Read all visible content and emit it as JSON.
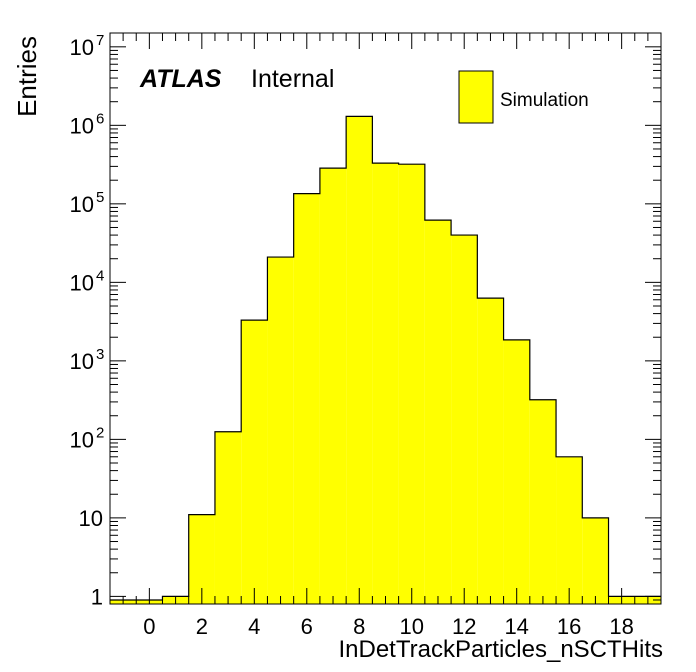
{
  "chart_data": {
    "type": "bar",
    "xlabel": "InDetTrackParticles_nSCTHits",
    "ylabel": "Entries",
    "log_y": true,
    "xlim": [
      -1.5,
      19.5
    ],
    "ylim": [
      0.8,
      15000000
    ],
    "x_ticks": [
      0,
      2,
      4,
      6,
      8,
      10,
      12,
      14,
      16,
      18
    ],
    "y_ticks": [
      {
        "value": 1,
        "label": "1"
      },
      {
        "value": 10,
        "label": "10"
      },
      {
        "value": 100,
        "label": "10",
        "exp": "2"
      },
      {
        "value": 1000,
        "label": "10",
        "exp": "3"
      },
      {
        "value": 10000,
        "label": "10",
        "exp": "4"
      },
      {
        "value": 100000,
        "label": "10",
        "exp": "5"
      },
      {
        "value": 1000000,
        "label": "10",
        "exp": "6"
      },
      {
        "value": 10000000,
        "label": "10",
        "exp": "7"
      }
    ],
    "bin_edges": [
      -1.5,
      -0.5,
      0.5,
      1.5,
      2.5,
      3.5,
      4.5,
      5.5,
      6.5,
      7.5,
      8.5,
      9.5,
      10.5,
      11.5,
      12.5,
      13.5,
      14.5,
      15.5,
      16.5,
      17.5,
      18.5,
      19.5
    ],
    "series": [
      {
        "name": "Simulation",
        "color": "#ffff00",
        "values": [
          0.9,
          0.9,
          1,
          11,
          125,
          3300,
          21000,
          135000,
          285000,
          1300000,
          330000,
          320000,
          62000,
          40000,
          6300,
          1850,
          320,
          60,
          10,
          1,
          1
        ]
      }
    ],
    "legend": {
      "placement": "top-right",
      "entries": [
        "Simulation"
      ]
    },
    "grid": false
  },
  "annotation": {
    "bold": "ATLAS",
    "text": "Internal"
  },
  "colors": {
    "fill": "#ffff00",
    "line": "#000000",
    "background": "#ffffff"
  }
}
